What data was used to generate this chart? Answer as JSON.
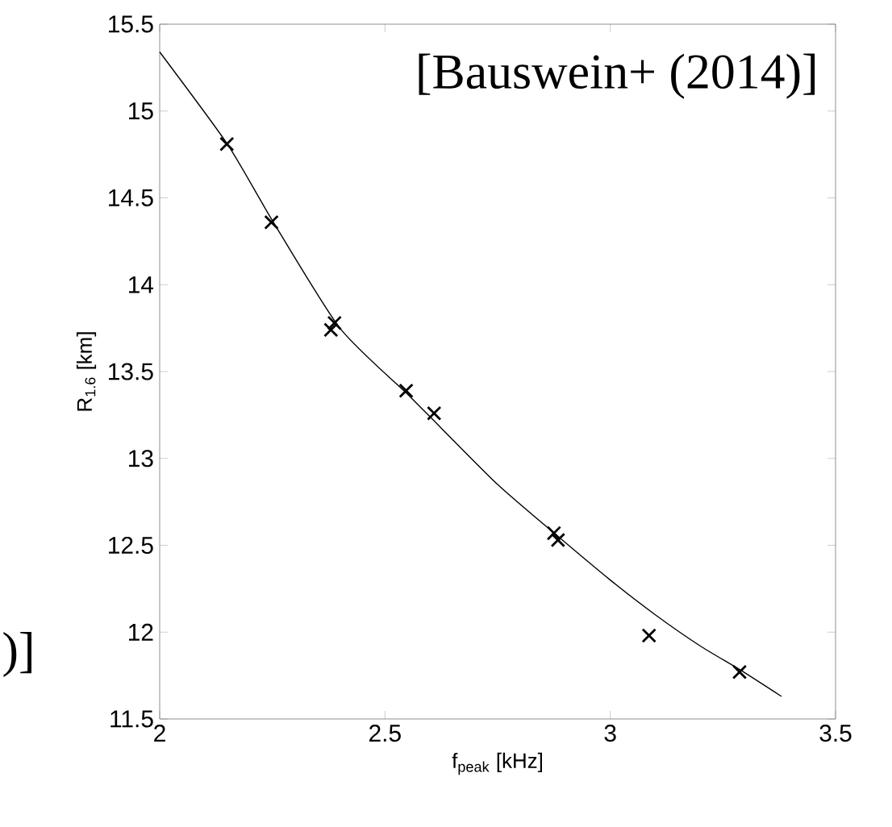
{
  "chart_data": {
    "type": "scatter",
    "xlabel": "f$_{peak}$ [kHz]",
    "ylabel": "R$_{1.6}$ [km]",
    "annotations": [
      "[Bauswein+ (2014)]",
      ")]"
    ],
    "xlim": [
      2,
      3.5
    ],
    "ylim": [
      11.5,
      15.5
    ],
    "xticks": [
      2,
      2.5,
      3,
      3.5
    ],
    "yticks": [
      11.5,
      12,
      12.5,
      13,
      13.5,
      14,
      14.5,
      15,
      15.5
    ],
    "grid": false,
    "series": [
      {
        "marker": "cross",
        "color": "#000000",
        "x": [
          2.149,
          2.248,
          2.38,
          2.388,
          2.547,
          2.609,
          2.875,
          2.884,
          3.086,
          3.287
        ],
        "values": [
          14.81,
          14.36,
          13.74,
          13.78,
          13.39,
          13.26,
          12.57,
          12.53,
          11.98,
          11.77
        ]
      },
      {
        "type": "line",
        "marker": "none",
        "line_style": "solid",
        "color": "#000000",
        "x": [
          2.0,
          2.15,
          2.25,
          2.4,
          2.55,
          2.6,
          2.75,
          2.88,
          3.0,
          3.1,
          3.2,
          3.29,
          3.38
        ],
        "values": [
          15.34,
          14.81,
          14.37,
          13.75,
          13.37,
          13.24,
          12.85,
          12.56,
          12.3,
          12.1,
          11.92,
          11.78,
          11.63
        ]
      }
    ]
  }
}
